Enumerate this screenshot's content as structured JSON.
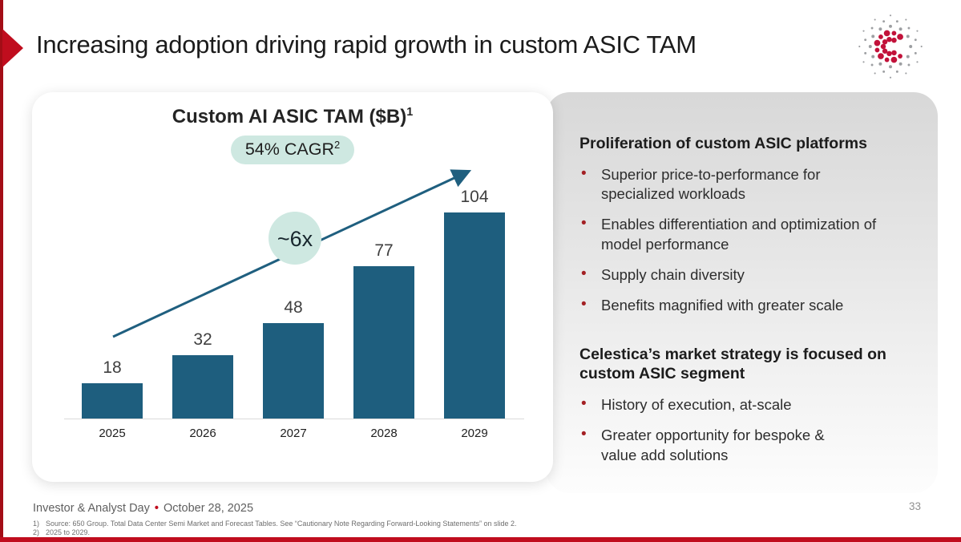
{
  "slide": {
    "title": "Increasing adoption driving rapid growth in custom ASIC TAM",
    "page_number": "33",
    "footer": {
      "event": "Investor & Analyst Day",
      "separator": "•",
      "date": "October 28, 2025",
      "footnotes": [
        {
          "num": "1)",
          "text": "Source: 650 Group. Total Data Center Semi Market and Forecast Tables. See “Cautionary Note Regarding Forward-Looking Statements” on slide 2."
        },
        {
          "num": "2)",
          "text": "2025 to 2029."
        }
      ]
    },
    "logo_name": "celestica-logo"
  },
  "chart_data": {
    "type": "bar",
    "title": "Custom AI ASIC TAM ($B)",
    "title_superscript": "1",
    "badge_label": "54% CAGR",
    "badge_superscript": "2",
    "growth_annotation": "~6x",
    "categories": [
      "2025",
      "2026",
      "2027",
      "2028",
      "2029"
    ],
    "values": [
      18,
      32,
      48,
      77,
      104
    ],
    "xlabel": "",
    "ylabel": "",
    "ylim": [
      0,
      110
    ],
    "grid": false,
    "legend": "none",
    "annotations": [
      "54% CAGR trend arrow rising left-to-right",
      "~6x total growth 2025 to 2029"
    ]
  },
  "panel": {
    "sections": [
      {
        "heading": "Proliferation of custom ASIC platforms",
        "bullets": [
          "Superior price-to-performance for specialized workloads",
          "Enables differentiation and optimization of model performance",
          "Supply chain diversity",
          "Benefits magnified with greater scale"
        ]
      },
      {
        "heading": "Celestica’s market strategy is focused on custom ASIC segment",
        "bullets": [
          "History of execution, at-scale",
          "Greater opportunity for bespoke & value add solutions"
        ]
      }
    ]
  },
  "colors": {
    "accent_red": "#c00d1e",
    "accent_red_dark": "#a30d16",
    "bar_teal": "#1e5e7e",
    "arrow_teal": "#1f5f7f",
    "mint_badge": "#cee8e1",
    "bullet_red": "#a32024"
  }
}
